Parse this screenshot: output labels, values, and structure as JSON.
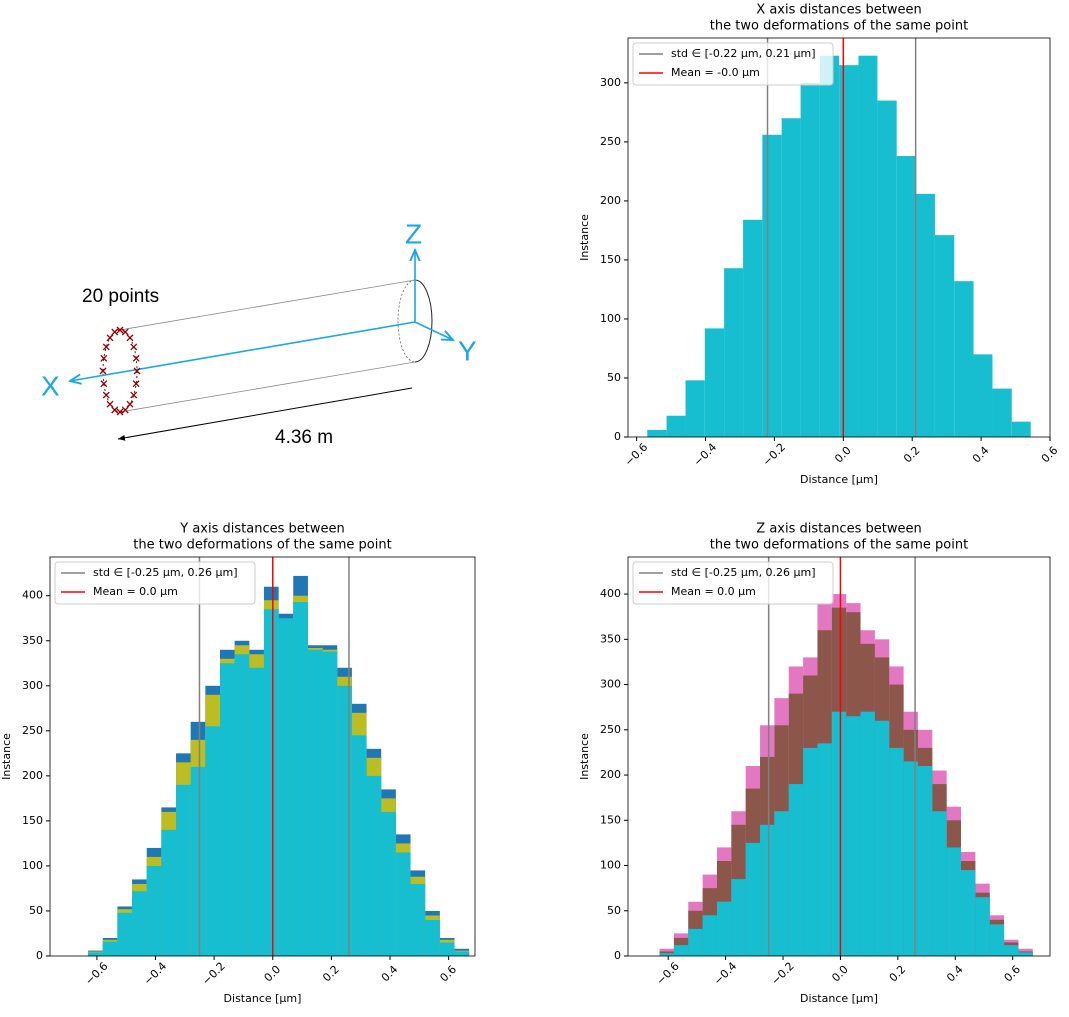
{
  "diagram": {
    "points_label": "20 points",
    "z_label": "Z",
    "y_label": "Y",
    "x_label": "X",
    "length_label": "4.36 m"
  },
  "chart_data": [
    {
      "type": "histogram",
      "title": [
        "X axis distances between",
        "the two deformations of the same point"
      ],
      "x_label": "Distance [µm]",
      "y_label": "Instance",
      "bins": [
        -0.569,
        -0.513,
        -0.458,
        -0.402,
        -0.346,
        -0.291,
        -0.235,
        -0.179,
        -0.124,
        -0.068,
        -0.012,
        0.044,
        0.099,
        0.155,
        0.211,
        0.266,
        0.322,
        0.378,
        0.433,
        0.489,
        0.544
      ],
      "series": [
        {
          "color": "#17becf",
          "values": [
            6,
            18,
            48,
            92,
            143,
            184,
            256,
            270,
            300,
            323,
            315,
            323,
            285,
            238,
            206,
            171,
            132,
            70,
            41,
            13
          ]
        }
      ],
      "reference_lines": [
        {
          "name": "std ∈ [-0.22 µm, 0.21 µm]",
          "color": "#808080",
          "values": [
            -0.22,
            0.21
          ]
        },
        {
          "name": "Mean = -0.0 µm",
          "color": "#ff0000",
          "values": [
            0
          ]
        }
      ],
      "xlim": [
        -0.625,
        0.6
      ],
      "ylim": [
        0,
        338
      ],
      "xticks": [
        {
          "value": -0.6,
          "label": "−0.6"
        },
        {
          "value": -0.4,
          "label": "−0.4"
        },
        {
          "value": -0.2,
          "label": "−0.2"
        },
        {
          "value": 0,
          "label": "0.0"
        },
        {
          "value": 0.2,
          "label": "0.2"
        },
        {
          "value": 0.4,
          "label": "0.4"
        },
        {
          "value": 0.6,
          "label": "0.6"
        }
      ],
      "yticks": [
        0,
        50,
        100,
        150,
        200,
        250,
        300
      ],
      "legend": "upper left"
    },
    {
      "type": "histogram",
      "title": [
        "Y axis distances between",
        "the two deformations of the same point"
      ],
      "x_label": "Distance [µm]",
      "y_label": "Instance",
      "bins": [
        -0.63,
        -0.58,
        -0.53,
        -0.48,
        -0.43,
        -0.38,
        -0.33,
        -0.28,
        -0.23,
        -0.18,
        -0.13,
        -0.08,
        -0.03,
        0.02,
        0.07,
        0.12,
        0.17,
        0.22,
        0.27,
        0.32,
        0.37,
        0.42,
        0.47,
        0.52,
        0.57,
        0.62,
        0.67
      ],
      "series": [
        {
          "color": "#1f77b4",
          "values": [
            6,
            20,
            55,
            85,
            120,
            165,
            225,
            260,
            300,
            340,
            350,
            340,
            410,
            380,
            422,
            345,
            345,
            320,
            280,
            230,
            185,
            135,
            95,
            50,
            20,
            8
          ]
        },
        {
          "color": "#bcbd22",
          "values": [
            5,
            18,
            52,
            80,
            110,
            160,
            215,
            240,
            290,
            330,
            345,
            335,
            395,
            370,
            400,
            342,
            340,
            310,
            270,
            220,
            175,
            125,
            88,
            45,
            18,
            6
          ]
        },
        {
          "color": "#17becf",
          "values": [
            4,
            16,
            48,
            72,
            100,
            140,
            190,
            210,
            255,
            325,
            335,
            320,
            385,
            375,
            393,
            340,
            338,
            300,
            245,
            200,
            160,
            115,
            80,
            40,
            15,
            5
          ]
        }
      ],
      "reference_lines": [
        {
          "name": "std ∈ [-0.25 µm, 0.26 µm]",
          "color": "#808080",
          "values": [
            -0.25,
            0.26
          ]
        },
        {
          "name": "Mean = 0.0 µm",
          "color": "#ff0000",
          "values": [
            0
          ]
        }
      ],
      "xlim": [
        -0.76,
        0.69
      ],
      "ylim": [
        0,
        443
      ],
      "xticks": [
        {
          "value": -0.6,
          "label": "−0.6"
        },
        {
          "value": -0.4,
          "label": "−0.4"
        },
        {
          "value": -0.2,
          "label": "−0.2"
        },
        {
          "value": 0,
          "label": "0.0"
        },
        {
          "value": 0.2,
          "label": "0.2"
        },
        {
          "value": 0.4,
          "label": "0.4"
        },
        {
          "value": 0.6,
          "label": "0.6"
        }
      ],
      "yticks": [
        0,
        50,
        100,
        150,
        200,
        250,
        300,
        350,
        400
      ],
      "legend": "upper left"
    },
    {
      "type": "histogram",
      "title": [
        "Z axis distances between",
        "the two deformations of the same point"
      ],
      "x_label": "Distance [µm]",
      "y_label": "Instance",
      "bins": [
        -0.63,
        -0.58,
        -0.53,
        -0.48,
        -0.43,
        -0.38,
        -0.33,
        -0.28,
        -0.23,
        -0.18,
        -0.13,
        -0.08,
        -0.03,
        0.02,
        0.07,
        0.12,
        0.17,
        0.22,
        0.27,
        0.32,
        0.37,
        0.42,
        0.47,
        0.52,
        0.57,
        0.62,
        0.67
      ],
      "series": [
        {
          "color": "#e377c2",
          "values": [
            8,
            25,
            60,
            90,
            120,
            160,
            210,
            255,
            285,
            320,
            330,
            390,
            400,
            390,
            360,
            350,
            320,
            270,
            250,
            205,
            165,
            115,
            80,
            45,
            18,
            8
          ]
        },
        {
          "color": "#8c564b",
          "values": [
            5,
            20,
            50,
            75,
            105,
            145,
            185,
            220,
            255,
            290,
            310,
            360,
            385,
            380,
            345,
            330,
            300,
            250,
            230,
            190,
            150,
            105,
            70,
            40,
            15,
            5
          ]
        },
        {
          "color": "#17becf",
          "values": [
            3,
            12,
            30,
            45,
            60,
            85,
            125,
            145,
            160,
            190,
            230,
            235,
            270,
            265,
            270,
            260,
            230,
            215,
            210,
            160,
            120,
            95,
            65,
            35,
            12,
            4
          ]
        }
      ],
      "reference_lines": [
        {
          "name": "std ∈ [-0.25 µm, 0.26 µm]",
          "color": "#808080",
          "values": [
            -0.25,
            0.26
          ]
        },
        {
          "name": "Mean = 0.0 µm",
          "color": "#ff0000",
          "values": [
            0
          ]
        }
      ],
      "xlim": [
        -0.74,
        0.73
      ],
      "ylim": [
        0,
        441
      ],
      "xticks": [
        {
          "value": -0.6,
          "label": "−0.6"
        },
        {
          "value": -0.4,
          "label": "−0.4"
        },
        {
          "value": -0.2,
          "label": "−0.2"
        },
        {
          "value": 0,
          "label": "0.0"
        },
        {
          "value": 0.2,
          "label": "0.2"
        },
        {
          "value": 0.4,
          "label": "0.4"
        },
        {
          "value": 0.6,
          "label": "0.6"
        }
      ],
      "yticks": [
        0,
        50,
        100,
        150,
        200,
        250,
        300,
        350,
        400
      ],
      "legend": "upper left"
    }
  ]
}
